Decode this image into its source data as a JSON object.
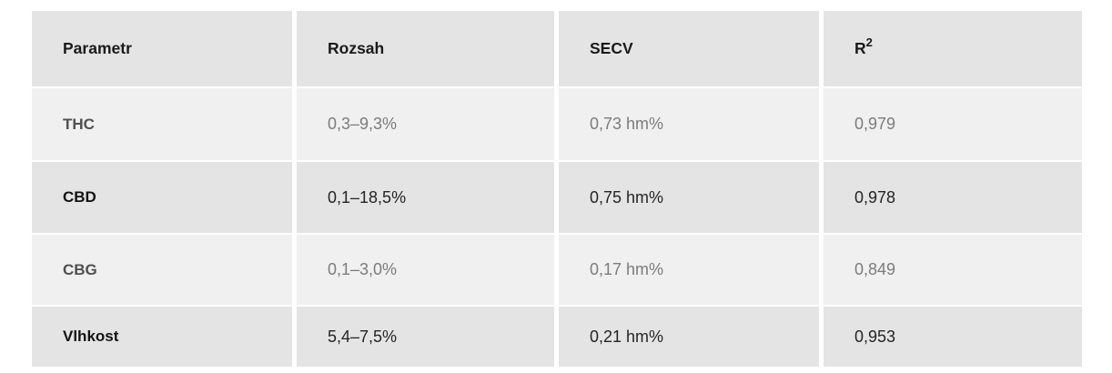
{
  "table": {
    "columns": [
      {
        "label": "Parametr"
      },
      {
        "label": "Rozsah"
      },
      {
        "label": "SECV"
      },
      {
        "label": "R",
        "sup": "2"
      }
    ],
    "rows": [
      {
        "parametr": "THC",
        "rozsah": "0,3–9,3%",
        "secv": "0,73 hm%",
        "r2": "0,979"
      },
      {
        "parametr": "CBD",
        "rozsah": "0,1–18,5%",
        "secv": "0,75 hm%",
        "r2": "0,978"
      },
      {
        "parametr": "CBG",
        "rozsah": "0,1–3,0%",
        "secv": "0,17 hm%",
        "r2": "0,849"
      },
      {
        "parametr": "Vlhkost",
        "rozsah": "5,4–7,5%",
        "secv": "0,21 hm%",
        "r2": "0,953"
      }
    ],
    "colors": {
      "page_bg": "#ffffff",
      "header_bg": "#e4e4e4",
      "row_light_bg": "#f0f0f0",
      "row_dark_bg": "#e4e4e4",
      "header_text": "#1a1a1a",
      "light_label_text": "#4f4f4f",
      "light_value_text": "#7c7c7c",
      "dark_label_text": "#131313",
      "dark_value_text": "#242424"
    }
  }
}
